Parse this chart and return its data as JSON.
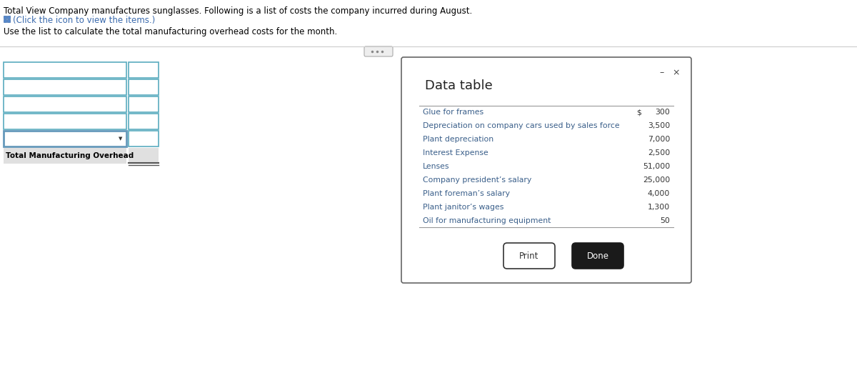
{
  "title_text": "Total View Company manufactures sunglasses. Following is a list of costs the company incurred during August.",
  "click_text": "(Click the icon to view the items.)",
  "instruction_text": "Use the list to calculate the total manufacturing overhead costs for the month.",
  "total_label": "Total Manufacturing Overhead",
  "dialog_title": "Data table",
  "items": [
    {
      "label": "Glue for frames",
      "value": "300",
      "dollar_sign": true
    },
    {
      "label": "Depreciation on company cars used by sales force",
      "value": "3,500",
      "dollar_sign": false
    },
    {
      "label": "Plant depreciation",
      "value": "7,000",
      "dollar_sign": false
    },
    {
      "label": "Interest Expense",
      "value": "2,500",
      "dollar_sign": false
    },
    {
      "label": "Lenses",
      "value": "51,000",
      "dollar_sign": false
    },
    {
      "label": "Company president’s salary",
      "value": "25,000",
      "dollar_sign": false
    },
    {
      "label": "Plant foreman’s salary",
      "value": "4,000",
      "dollar_sign": false
    },
    {
      "label": "Plant janitor’s wages",
      "value": "1,300",
      "dollar_sign": false
    },
    {
      "label": "Oil for manufacturing equipment",
      "value": "50",
      "dollar_sign": false
    }
  ],
  "print_btn": "Print",
  "done_btn": "Done",
  "bg_color": "#ffffff",
  "dialog_bg": "#ffffff",
  "dialog_border": "#555555",
  "item_text_color": "#3a5f8a",
  "title_color": "#000000",
  "input_border_color": "#5aacbf",
  "input_fill_color": "#ffffff",
  "separator_color": "#cccccc",
  "num_input_rows": 5,
  "close_btn_color": "#444444",
  "minimize_btn_color": "#444444",
  "table_line_color": "#999999",
  "total_row_bg": "#e8e8e8",
  "dots_indicator_color": "#aaaaaa"
}
